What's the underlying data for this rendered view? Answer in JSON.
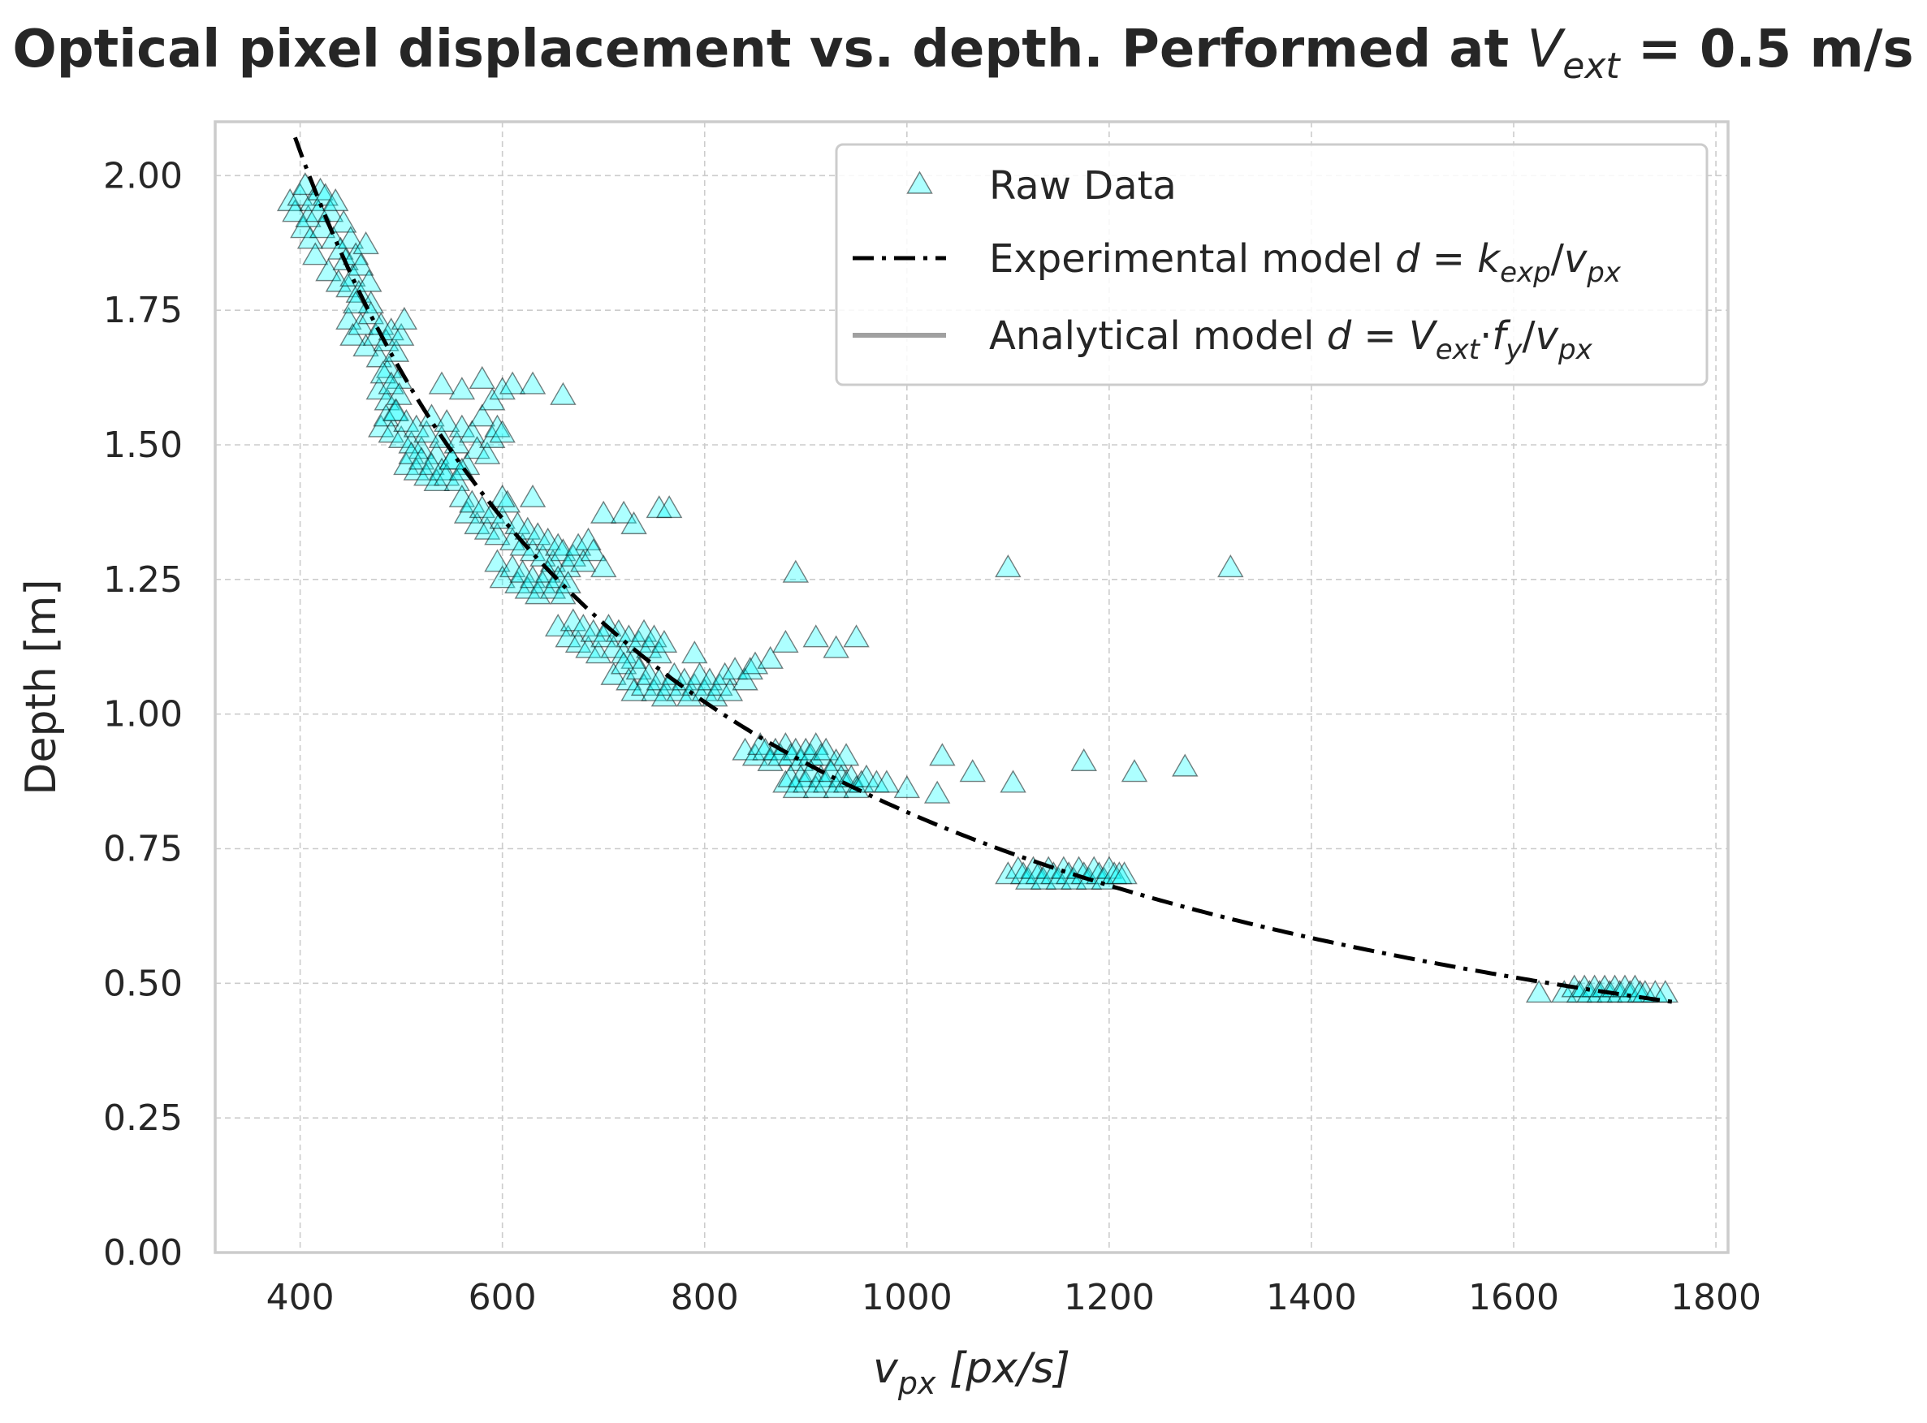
{
  "chart_data": {
    "type": "scatter",
    "title_main": "Optical pixel displacement vs. depth. Performed at ",
    "title_var": "V",
    "title_sub": "ext",
    "title_tail": " = 0.5 m/s",
    "xlabel": {
      "main": "v",
      "sub": "px",
      "tail": " [px/s]"
    },
    "ylabel": "Depth [m]",
    "xlim": [
      316,
      1812
    ],
    "ylim": [
      0,
      2.1
    ],
    "xticks": [
      "400",
      "600",
      "800",
      "1000",
      "1200",
      "1400",
      "1600",
      "1800"
    ],
    "yticks": [
      "0.00",
      "0.25",
      "0.50",
      "0.75",
      "1.00",
      "1.25",
      "1.50",
      "1.75",
      "2.00"
    ],
    "grid": true,
    "legend_location": "upper right",
    "legend": [
      {
        "type": "marker",
        "text": "Raw Data"
      },
      {
        "type": "dashdot",
        "parts": [
          [
            "Experimental model ",
            ""
          ],
          [
            "d",
            "i"
          ],
          [
            " = ",
            ""
          ],
          [
            "k",
            "i"
          ],
          [
            "exp",
            "sub"
          ],
          [
            "/",
            ""
          ],
          [
            "v",
            "i"
          ],
          [
            "px",
            "sub"
          ]
        ]
      },
      {
        "type": "solid",
        "parts": [
          [
            "Analytical model ",
            ""
          ],
          [
            "d",
            "i"
          ],
          [
            " = ",
            ""
          ],
          [
            "V",
            "i"
          ],
          [
            "ext",
            "sub"
          ],
          [
            "·",
            ""
          ],
          [
            "f",
            "i"
          ],
          [
            "y",
            "sub"
          ],
          [
            "/",
            ""
          ],
          [
            "v",
            "i"
          ],
          [
            "px",
            "sub"
          ]
        ]
      }
    ],
    "series": [
      {
        "name": "Raw Data",
        "kind": "scatter",
        "marker": "triangle",
        "color": "#00ffff",
        "points": [
          [
            390,
            1.95
          ],
          [
            395,
            1.93
          ],
          [
            400,
            1.96
          ],
          [
            403,
            1.9
          ],
          [
            405,
            1.98
          ],
          [
            408,
            1.92
          ],
          [
            410,
            1.88
          ],
          [
            412,
            1.95
          ],
          [
            415,
            1.85
          ],
          [
            418,
            1.93
          ],
          [
            420,
            1.97
          ],
          [
            422,
            1.9
          ],
          [
            425,
            1.96
          ],
          [
            428,
            1.82
          ],
          [
            430,
            1.93
          ],
          [
            433,
            1.88
          ],
          [
            435,
            1.95
          ],
          [
            438,
            1.8
          ],
          [
            440,
            1.86
          ],
          [
            443,
            1.91
          ],
          [
            445,
            1.84
          ],
          [
            448,
            1.79
          ],
          [
            450,
            1.88
          ],
          [
            452,
            1.81
          ],
          [
            455,
            1.85
          ],
          [
            458,
            1.78
          ],
          [
            460,
            1.83
          ],
          [
            465,
            1.87
          ],
          [
            468,
            1.8
          ],
          [
            470,
            1.76
          ],
          [
            448,
            1.73
          ],
          [
            452,
            1.7
          ],
          [
            455,
            1.76
          ],
          [
            460,
            1.72
          ],
          [
            465,
            1.68
          ],
          [
            470,
            1.74
          ],
          [
            475,
            1.7
          ],
          [
            478,
            1.66
          ],
          [
            480,
            1.72
          ],
          [
            485,
            1.69
          ],
          [
            488,
            1.64
          ],
          [
            490,
            1.71
          ],
          [
            495,
            1.67
          ],
          [
            498,
            1.62
          ],
          [
            500,
            1.7
          ],
          [
            503,
            1.73
          ],
          [
            478,
            1.6
          ],
          [
            482,
            1.63
          ],
          [
            486,
            1.58
          ],
          [
            490,
            1.61
          ],
          [
            494,
            1.56
          ],
          [
            498,
            1.59
          ],
          [
            480,
            1.53
          ],
          [
            485,
            1.55
          ],
          [
            490,
            1.52
          ],
          [
            495,
            1.56
          ],
          [
            500,
            1.51
          ],
          [
            505,
            1.54
          ],
          [
            510,
            1.5
          ],
          [
            515,
            1.53
          ],
          [
            520,
            1.49
          ],
          [
            525,
            1.52
          ],
          [
            530,
            1.55
          ],
          [
            535,
            1.48
          ],
          [
            540,
            1.51
          ],
          [
            545,
            1.54
          ],
          [
            550,
            1.47
          ],
          [
            555,
            1.5
          ],
          [
            560,
            1.53
          ],
          [
            565,
            1.46
          ],
          [
            570,
            1.52
          ],
          [
            575,
            1.49
          ],
          [
            580,
            1.55
          ],
          [
            585,
            1.48
          ],
          [
            590,
            1.51
          ],
          [
            595,
            1.53
          ],
          [
            600,
            1.52
          ],
          [
            505,
            1.46
          ],
          [
            510,
            1.48
          ],
          [
            515,
            1.45
          ],
          [
            520,
            1.47
          ],
          [
            525,
            1.44
          ],
          [
            530,
            1.46
          ],
          [
            535,
            1.43
          ],
          [
            540,
            1.45
          ],
          [
            545,
            1.44
          ],
          [
            550,
            1.47
          ],
          [
            555,
            1.43
          ],
          [
            560,
            1.45
          ],
          [
            560,
            1.4
          ],
          [
            565,
            1.37
          ],
          [
            570,
            1.39
          ],
          [
            575,
            1.35
          ],
          [
            580,
            1.38
          ],
          [
            585,
            1.34
          ],
          [
            590,
            1.37
          ],
          [
            595,
            1.33
          ],
          [
            600,
            1.36
          ],
          [
            605,
            1.39
          ],
          [
            610,
            1.32
          ],
          [
            615,
            1.35
          ],
          [
            620,
            1.31
          ],
          [
            625,
            1.34
          ],
          [
            630,
            1.3
          ],
          [
            635,
            1.33
          ],
          [
            640,
            1.29
          ],
          [
            645,
            1.32
          ],
          [
            650,
            1.28
          ],
          [
            655,
            1.31
          ],
          [
            660,
            1.3
          ],
          [
            665,
            1.27
          ],
          [
            670,
            1.29
          ],
          [
            675,
            1.31
          ],
          [
            680,
            1.28
          ],
          [
            685,
            1.32
          ],
          [
            690,
            1.3
          ],
          [
            700,
            1.27
          ],
          [
            595,
            1.28
          ],
          [
            600,
            1.25
          ],
          [
            610,
            1.27
          ],
          [
            615,
            1.24
          ],
          [
            620,
            1.26
          ],
          [
            625,
            1.23
          ],
          [
            630,
            1.25
          ],
          [
            635,
            1.22
          ],
          [
            640,
            1.24
          ],
          [
            645,
            1.26
          ],
          [
            650,
            1.23
          ],
          [
            655,
            1.25
          ],
          [
            660,
            1.22
          ],
          [
            665,
            1.24
          ],
          [
            655,
            1.16
          ],
          [
            665,
            1.14
          ],
          [
            670,
            1.17
          ],
          [
            675,
            1.13
          ],
          [
            680,
            1.16
          ],
          [
            685,
            1.12
          ],
          [
            690,
            1.15
          ],
          [
            695,
            1.11
          ],
          [
            700,
            1.14
          ],
          [
            705,
            1.16
          ],
          [
            710,
            1.12
          ],
          [
            715,
            1.15
          ],
          [
            720,
            1.11
          ],
          [
            725,
            1.14
          ],
          [
            730,
            1.1
          ],
          [
            735,
            1.13
          ],
          [
            740,
            1.15
          ],
          [
            745,
            1.12
          ],
          [
            750,
            1.14
          ],
          [
            755,
            1.11
          ],
          [
            760,
            1.13
          ],
          [
            710,
            1.07
          ],
          [
            720,
            1.09
          ],
          [
            725,
            1.06
          ],
          [
            730,
            1.04
          ],
          [
            735,
            1.08
          ],
          [
            740,
            1.05
          ],
          [
            745,
            1.07
          ],
          [
            750,
            1.04
          ],
          [
            755,
            1.06
          ],
          [
            760,
            1.03
          ],
          [
            765,
            1.05
          ],
          [
            770,
            1.07
          ],
          [
            775,
            1.04
          ],
          [
            780,
            1.06
          ],
          [
            785,
            1.03
          ],
          [
            790,
            1.05
          ],
          [
            795,
            1.07
          ],
          [
            800,
            1.04
          ],
          [
            805,
            1.06
          ],
          [
            810,
            1.03
          ],
          [
            815,
            1.05
          ],
          [
            820,
            1.07
          ],
          [
            825,
            1.04
          ],
          [
            790,
            1.11
          ],
          [
            830,
            1.08
          ],
          [
            840,
            1.06
          ],
          [
            845,
            1.08
          ],
          [
            850,
            1.09
          ],
          [
            865,
            1.1
          ],
          [
            840,
            0.93
          ],
          [
            850,
            0.92
          ],
          [
            855,
            0.94
          ],
          [
            860,
            0.93
          ],
          [
            865,
            0.91
          ],
          [
            870,
            0.93
          ],
          [
            875,
            0.92
          ],
          [
            880,
            0.94
          ],
          [
            885,
            0.92
          ],
          [
            890,
            0.93
          ],
          [
            895,
            0.91
          ],
          [
            900,
            0.93
          ],
          [
            905,
            0.92
          ],
          [
            910,
            0.94
          ],
          [
            915,
            0.92
          ],
          [
            920,
            0.93
          ],
          [
            930,
            0.91
          ],
          [
            940,
            0.92
          ],
          [
            880,
            0.87
          ],
          [
            885,
            0.88
          ],
          [
            890,
            0.86
          ],
          [
            895,
            0.88
          ],
          [
            900,
            0.87
          ],
          [
            905,
            0.89
          ],
          [
            910,
            0.86
          ],
          [
            915,
            0.88
          ],
          [
            920,
            0.87
          ],
          [
            925,
            0.89
          ],
          [
            930,
            0.86
          ],
          [
            935,
            0.88
          ],
          [
            940,
            0.87
          ],
          [
            945,
            0.88
          ],
          [
            950,
            0.86
          ],
          [
            955,
            0.87
          ],
          [
            960,
            0.88
          ],
          [
            970,
            0.87
          ],
          [
            980,
            0.87
          ],
          [
            1000,
            0.86
          ],
          [
            1100,
            0.7
          ],
          [
            1110,
            0.71
          ],
          [
            1115,
            0.7
          ],
          [
            1120,
            0.69
          ],
          [
            1125,
            0.71
          ],
          [
            1130,
            0.7
          ],
          [
            1135,
            0.69
          ],
          [
            1140,
            0.71
          ],
          [
            1145,
            0.7
          ],
          [
            1150,
            0.69
          ],
          [
            1155,
            0.71
          ],
          [
            1160,
            0.7
          ],
          [
            1165,
            0.69
          ],
          [
            1170,
            0.71
          ],
          [
            1175,
            0.7
          ],
          [
            1180,
            0.69
          ],
          [
            1185,
            0.71
          ],
          [
            1190,
            0.7
          ],
          [
            1195,
            0.69
          ],
          [
            1200,
            0.71
          ],
          [
            1205,
            0.7
          ],
          [
            1210,
            0.7
          ],
          [
            1215,
            0.7
          ],
          [
            1625,
            0.48
          ],
          [
            1650,
            0.48
          ],
          [
            1660,
            0.49
          ],
          [
            1665,
            0.48
          ],
          [
            1670,
            0.49
          ],
          [
            1675,
            0.48
          ],
          [
            1680,
            0.49
          ],
          [
            1685,
            0.48
          ],
          [
            1690,
            0.49
          ],
          [
            1695,
            0.48
          ],
          [
            1700,
            0.49
          ],
          [
            1705,
            0.48
          ],
          [
            1710,
            0.49
          ],
          [
            1715,
            0.48
          ],
          [
            1720,
            0.49
          ],
          [
            1725,
            0.48
          ],
          [
            1730,
            0.48
          ],
          [
            1740,
            0.48
          ],
          [
            1750,
            0.48
          ],
          [
            540,
            1.61
          ],
          [
            560,
            1.6
          ],
          [
            580,
            1.62
          ],
          [
            590,
            1.58
          ],
          [
            600,
            1.6
          ],
          [
            610,
            1.61
          ],
          [
            630,
            1.61
          ],
          [
            660,
            1.59
          ],
          [
            600,
            1.4
          ],
          [
            630,
            1.4
          ],
          [
            700,
            1.37
          ],
          [
            720,
            1.37
          ],
          [
            730,
            1.35
          ],
          [
            755,
            1.38
          ],
          [
            765,
            1.38
          ],
          [
            890,
            1.26
          ],
          [
            1100,
            1.27
          ],
          [
            1320,
            1.27
          ],
          [
            880,
            1.13
          ],
          [
            910,
            1.14
          ],
          [
            930,
            1.12
          ],
          [
            950,
            1.14
          ],
          [
            1035,
            0.92
          ],
          [
            1065,
            0.89
          ],
          [
            1105,
            0.87
          ],
          [
            1175,
            0.91
          ],
          [
            1225,
            0.89
          ],
          [
            1275,
            0.9
          ],
          [
            1030,
            0.85
          ]
        ]
      },
      {
        "name": "Experimental model",
        "kind": "line",
        "style": "dashdot",
        "color": "#000000",
        "k": 818,
        "x_range": [
          395,
          1760
        ]
      },
      {
        "name": "Analytical model",
        "kind": "line",
        "style": "solid",
        "color": "#a0a0a0"
      }
    ]
  }
}
